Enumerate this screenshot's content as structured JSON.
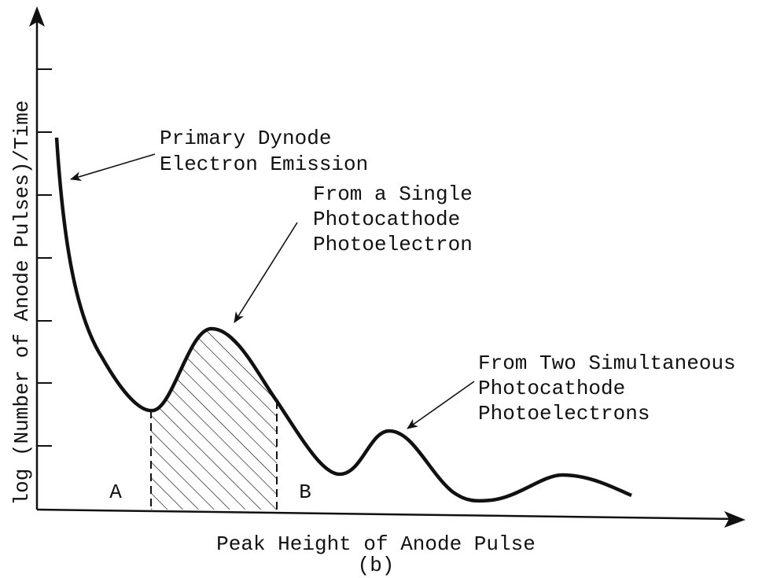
{
  "axes": {
    "y_label": "log (Number of Anode Pulses)/Time",
    "x_label": "Peak Height of Anode Pulse"
  },
  "caption": "(b)",
  "annotations": [
    {
      "lines": [
        "Primary Dynode",
        "Electron Emission"
      ]
    },
    {
      "lines": [
        "From a Single",
        "Photocathode",
        "Photoelectron"
      ]
    },
    {
      "lines": [
        "From Two Simultaneous",
        "Photocathode",
        "Photoelectrons"
      ]
    }
  ],
  "region_labels": [
    "A",
    "B"
  ]
}
